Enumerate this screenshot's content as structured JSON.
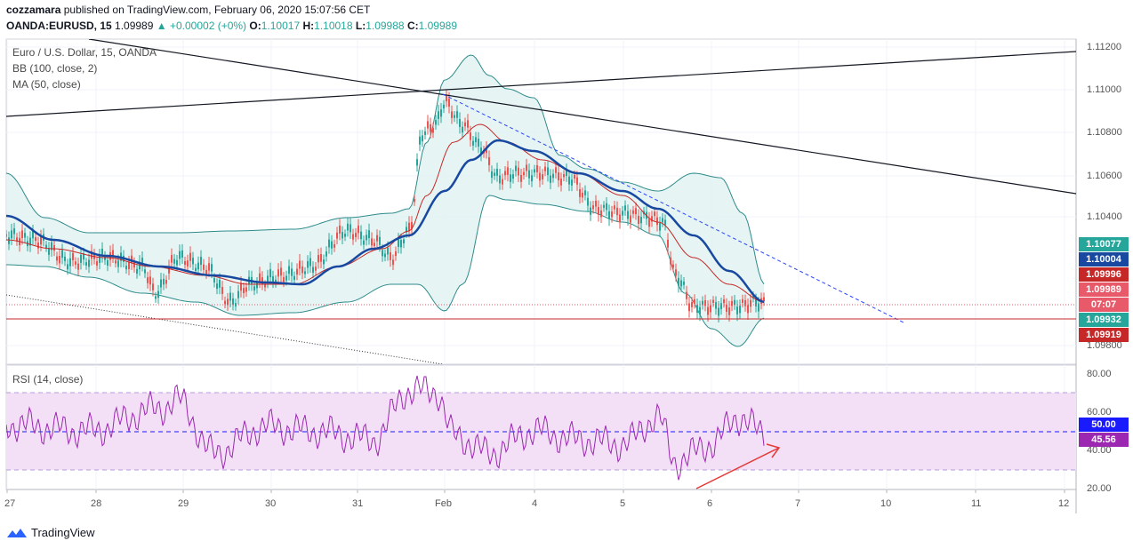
{
  "header": {
    "publisher": "cozzamara",
    "published_text": "published on TradingView.com, February 06, 2020 15:07:56 CET",
    "symbol": "OANDA:EURUSD, 15",
    "last": "1.09989",
    "change": "▲ +0.00002 (+0%)",
    "open_label": "O:",
    "open": "1.10017",
    "high_label": "H:",
    "high": "1.10018",
    "low_label": "L:",
    "low": "1.09988",
    "close_label": "C:",
    "close": "1.09989"
  },
  "legend": {
    "title": "Euro / U.S. Dollar, 15, OANDA",
    "bb": "BB (100, close, 2)",
    "ma": "MA (50, close)",
    "rsi": "RSI (14, close)"
  },
  "price_axis": [
    "1.11200",
    "1.11000",
    "1.10800",
    "1.10600",
    "1.10400",
    "1.09800"
  ],
  "price_tags": [
    {
      "text": "1.10077",
      "color": "#26a69a"
    },
    {
      "text": "1.10004",
      "color": "#1848a0"
    },
    {
      "text": "1.09996",
      "color": "#c62828"
    },
    {
      "text": "1.09989",
      "color": "#e85a6a"
    },
    {
      "text": "07:07",
      "color": "#e85a6a"
    },
    {
      "text": "1.09932",
      "color": "#26a69a"
    },
    {
      "text": "1.09919",
      "color": "#c62828"
    }
  ],
  "rsi_axis": [
    "80.00",
    "60.00",
    "40.00",
    "20.00"
  ],
  "rsi_tags": [
    {
      "text": "50.00",
      "color": "#1a1aff"
    },
    {
      "text": "45.56",
      "color": "#9c27b0"
    }
  ],
  "time_axis": [
    "27",
    "28",
    "29",
    "30",
    "31",
    "Feb",
    "4",
    "5",
    "6",
    "7",
    "10",
    "11",
    "12"
  ],
  "footer": {
    "brand": "TradingView"
  },
  "colors": {
    "bb_line": "#2e8b8b",
    "bb_fill": "#e0f2f1",
    "ma": "#1848a0",
    "basis": "#c62828",
    "rsi": "#9c27b0",
    "rsi_band": "#f3e0f7"
  }
}
